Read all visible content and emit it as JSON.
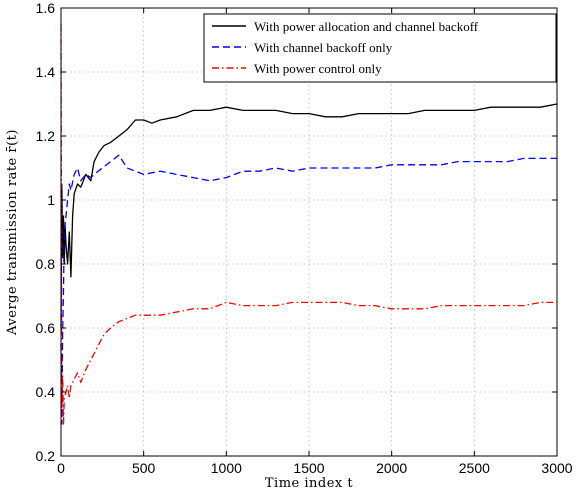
{
  "chart_data": {
    "type": "line",
    "title": "",
    "xlabel": "Time index t",
    "ylabel": "Averge transmission rate r̄(t)",
    "xlim": [
      0,
      3000
    ],
    "ylim": [
      0.2,
      1.6
    ],
    "xticks": [
      0,
      500,
      1000,
      1500,
      2000,
      2500,
      3000
    ],
    "yticks": [
      0.2,
      0.4,
      0.6,
      0.8,
      1.0,
      1.2,
      1.4,
      1.6
    ],
    "xtick_labels": [
      "0",
      "500",
      "1000",
      "1500",
      "2000",
      "2500",
      "3000"
    ],
    "ytick_labels": [
      "0.2",
      "0.4",
      "0.6",
      "0.8",
      "1",
      "1.2",
      "1.4",
      "1.6"
    ],
    "grid": true,
    "legend_position": "top-right",
    "series": [
      {
        "name": "With power allocation and channel backoff",
        "color": "#000000",
        "style": "solid",
        "x": [
          0,
          5,
          10,
          15,
          20,
          25,
          30,
          40,
          50,
          60,
          70,
          80,
          100,
          120,
          150,
          180,
          200,
          230,
          260,
          300,
          350,
          400,
          450,
          500,
          550,
          600,
          700,
          800,
          900,
          1000,
          1100,
          1200,
          1300,
          1400,
          1500,
          1600,
          1700,
          1800,
          1900,
          2000,
          2100,
          2200,
          2300,
          2400,
          2500,
          2600,
          2700,
          2800,
          2900,
          3000
        ],
        "y": [
          0.6,
          1.05,
          0.82,
          0.95,
          0.8,
          0.92,
          0.86,
          0.8,
          0.9,
          0.76,
          0.95,
          1.02,
          1.05,
          1.04,
          1.08,
          1.06,
          1.12,
          1.15,
          1.17,
          1.18,
          1.2,
          1.22,
          1.25,
          1.25,
          1.24,
          1.25,
          1.26,
          1.28,
          1.28,
          1.29,
          1.28,
          1.28,
          1.28,
          1.27,
          1.27,
          1.26,
          1.26,
          1.27,
          1.27,
          1.27,
          1.27,
          1.28,
          1.28,
          1.28,
          1.28,
          1.29,
          1.29,
          1.29,
          1.29,
          1.3
        ]
      },
      {
        "name": "With channel backoff only",
        "color": "#0000ff",
        "style": "dashed",
        "x": [
          0,
          5,
          10,
          15,
          20,
          30,
          40,
          50,
          60,
          80,
          100,
          120,
          150,
          180,
          200,
          250,
          300,
          350,
          400,
          450,
          500,
          600,
          700,
          800,
          900,
          1000,
          1100,
          1200,
          1300,
          1400,
          1500,
          1600,
          1700,
          1800,
          1900,
          2000,
          2100,
          2200,
          2300,
          2400,
          2500,
          2600,
          2700,
          2800,
          2900,
          3000
        ],
        "y": [
          0.55,
          0.3,
          0.6,
          0.72,
          0.9,
          0.95,
          1.0,
          1.05,
          1.03,
          1.08,
          1.1,
          1.06,
          1.08,
          1.07,
          1.08,
          1.1,
          1.12,
          1.14,
          1.1,
          1.09,
          1.08,
          1.09,
          1.08,
          1.07,
          1.06,
          1.07,
          1.09,
          1.09,
          1.1,
          1.09,
          1.1,
          1.1,
          1.1,
          1.1,
          1.1,
          1.11,
          1.11,
          1.11,
          1.11,
          1.12,
          1.12,
          1.12,
          1.12,
          1.13,
          1.13,
          1.13
        ]
      },
      {
        "name": "With power control only",
        "color": "#ff0000",
        "style": "dashdot",
        "x": [
          0,
          5,
          10,
          15,
          20,
          30,
          40,
          50,
          60,
          80,
          100,
          120,
          150,
          180,
          200,
          230,
          260,
          300,
          350,
          400,
          450,
          500,
          550,
          600,
          700,
          800,
          900,
          1000,
          1100,
          1200,
          1300,
          1400,
          1500,
          1600,
          1700,
          1800,
          1900,
          2000,
          2100,
          2200,
          2300,
          2400,
          2500,
          2600,
          2700,
          2800,
          2900,
          3000
        ],
        "y": [
          1.55,
          0.35,
          0.45,
          0.3,
          0.38,
          0.4,
          0.42,
          0.38,
          0.42,
          0.44,
          0.46,
          0.43,
          0.47,
          0.5,
          0.52,
          0.55,
          0.58,
          0.6,
          0.62,
          0.63,
          0.64,
          0.64,
          0.64,
          0.64,
          0.65,
          0.66,
          0.66,
          0.68,
          0.67,
          0.67,
          0.67,
          0.68,
          0.68,
          0.68,
          0.68,
          0.67,
          0.67,
          0.66,
          0.66,
          0.66,
          0.67,
          0.67,
          0.67,
          0.67,
          0.67,
          0.67,
          0.68,
          0.68
        ]
      }
    ]
  }
}
